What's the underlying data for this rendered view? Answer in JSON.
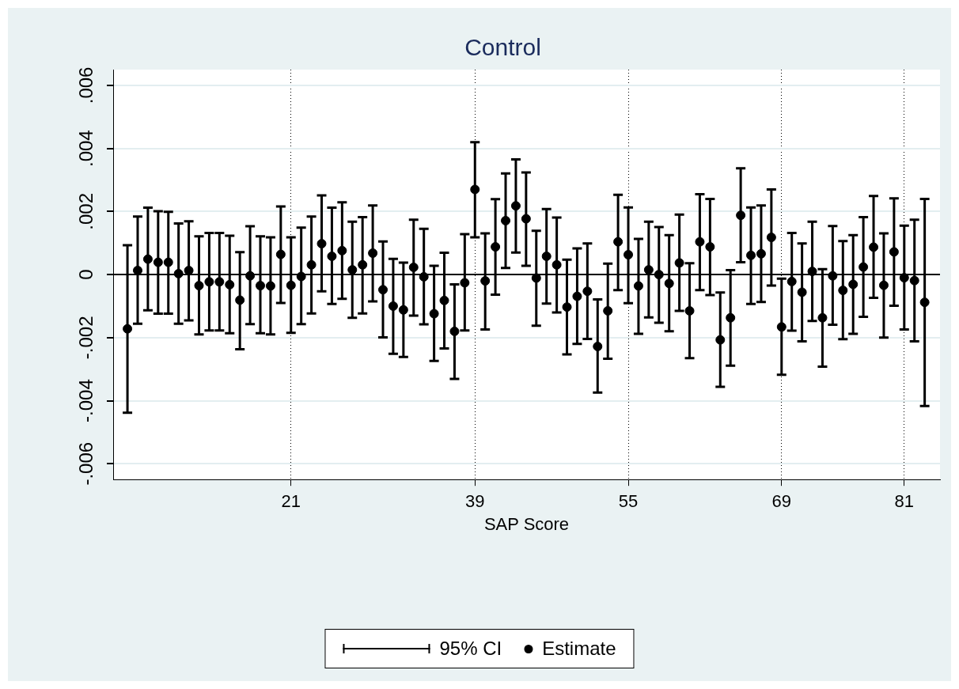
{
  "chart_data": {
    "type": "scatter",
    "title": "Control",
    "xlabel": "SAP Score",
    "categories": [
      null,
      null,
      null,
      null,
      null,
      null,
      null,
      null,
      null,
      null,
      null,
      null,
      null,
      null,
      null,
      null,
      "21",
      null,
      null,
      null,
      null,
      null,
      null,
      null,
      null,
      null,
      null,
      null,
      null,
      null,
      null,
      null,
      null,
      null,
      "39",
      null,
      null,
      null,
      null,
      null,
      null,
      null,
      null,
      null,
      null,
      null,
      null,
      null,
      null,
      "55",
      null,
      null,
      null,
      null,
      null,
      null,
      null,
      null,
      null,
      null,
      null,
      null,
      null,
      null,
      "69",
      null,
      null,
      null,
      null,
      null,
      null,
      null,
      null,
      null,
      null,
      null,
      "81",
      null,
      null
    ],
    "ylim": [
      -0.0065,
      0.0065
    ],
    "yticks": [
      {
        "value": -0.006,
        "label": "-.006"
      },
      {
        "value": -0.004,
        "label": "-.004"
      },
      {
        "value": -0.002,
        "label": "-.002"
      },
      0,
      {
        "value": 0.002,
        "label": ".002"
      },
      {
        "value": 0.004,
        "label": ".004"
      },
      {
        "value": 0.006,
        "label": ".006"
      }
    ],
    "grid": true,
    "legend": "bottom",
    "annotations": [
      "95% CI"
    ],
    "ref_lines": [
      {
        "axis": "y",
        "value": 0,
        "color": "#000000"
      }
    ],
    "series": [
      {
        "name": "Estimate",
        "type": "scatter",
        "marker": "circle",
        "color": "#000000",
        "values": [
          -0.00172,
          0.00013,
          0.00049,
          0.00039,
          0.00039,
          3e-05,
          0.00013,
          -0.00035,
          -0.00023,
          -0.00023,
          -0.00032,
          -0.00081,
          -4e-05,
          -0.00035,
          -0.00036,
          0.00064,
          -0.00034,
          -6e-05,
          0.00031,
          0.00098,
          0.00058,
          0.00076,
          0.00015,
          0.00031,
          0.00068,
          -0.00048,
          -0.001,
          -0.00112,
          0.00023,
          -7e-05,
          -0.00124,
          -0.00082,
          -0.0018,
          -0.00026,
          0.0027,
          -0.0002,
          0.00088,
          0.00171,
          0.00218,
          0.00177,
          -0.00011,
          0.00058,
          0.00031,
          -0.00103,
          -0.00069,
          -0.00053,
          -0.00228,
          -0.00115,
          0.00104,
          0.00063,
          -0.00036,
          0.00015,
          0,
          -0.00028,
          0.00037,
          -0.00115,
          0.00104,
          0.00088,
          -0.00207,
          -0.00137,
          0.00188,
          0.00061,
          0.00066,
          0.00118,
          -0.00166,
          -0.00022,
          -0.00056,
          0.0001,
          -0.00137,
          -4e-05,
          -0.0005,
          -0.00031,
          0.00024,
          0.00087,
          -0.00034,
          0.00072,
          -0.0001,
          -0.00019,
          -0.00088
        ],
        "errors": [
          [
            -0.00438,
            0.00093
          ],
          [
            -0.00156,
            0.00184
          ],
          [
            -0.00113,
            0.00212
          ],
          [
            -0.00124,
            0.00201
          ],
          [
            -0.00124,
            0.00199
          ],
          [
            -0.00156,
            0.00162
          ],
          [
            -0.00145,
            0.00169
          ],
          [
            -0.0019,
            0.00121
          ],
          [
            -0.00177,
            0.00132
          ],
          [
            -0.00177,
            0.00132
          ],
          [
            -0.00186,
            0.00123
          ],
          [
            -0.00237,
            0.00071
          ],
          [
            -0.00157,
            0.00153
          ],
          [
            -0.00186,
            0.00121
          ],
          [
            -0.0019,
            0.00118
          ],
          [
            -0.0009,
            0.00216
          ],
          [
            -0.00185,
            0.00118
          ],
          [
            -0.00157,
            0.00149
          ],
          [
            -0.00123,
            0.00184
          ],
          [
            -0.00053,
            0.00251
          ],
          [
            -0.00093,
            0.00212
          ],
          [
            -0.00077,
            0.00229
          ],
          [
            -0.00137,
            0.00168
          ],
          [
            -0.00123,
            0.00182
          ],
          [
            -0.00085,
            0.00219
          ],
          [
            -0.00199,
            0.00105
          ],
          [
            -0.00251,
            0.0005
          ],
          [
            -0.00261,
            0.00038
          ],
          [
            -0.0013,
            0.00174
          ],
          [
            -0.00158,
            0.00145
          ],
          [
            -0.00274,
            0.00028
          ],
          [
            -0.00234,
            0.00069
          ],
          [
            -0.00331,
            -0.00031
          ],
          [
            -0.00177,
            0.00128
          ],
          [
            0.00118,
            0.0042
          ],
          [
            -0.00174,
            0.00131
          ],
          [
            -0.00064,
            0.00239
          ],
          [
            0.00021,
            0.00321
          ],
          [
            0.0007,
            0.00365
          ],
          [
            0.00028,
            0.00324
          ],
          [
            -0.00162,
            0.00139
          ],
          [
            -0.00092,
            0.00208
          ],
          [
            -0.0012,
            0.00181
          ],
          [
            -0.00253,
            0.00047
          ],
          [
            -0.0022,
            0.00083
          ],
          [
            -0.00204,
            0.00099
          ],
          [
            -0.00374,
            -0.00079
          ],
          [
            -0.00267,
            0.00035
          ],
          [
            -0.00049,
            0.00253
          ],
          [
            -0.00091,
            0.00213
          ],
          [
            -0.00188,
            0.00113
          ],
          [
            -0.00136,
            0.00168
          ],
          [
            -0.00153,
            0.00151
          ],
          [
            -0.0018,
            0.00125
          ],
          [
            -0.00115,
            0.0019
          ],
          [
            -0.00265,
            0.00036
          ],
          [
            -0.00049,
            0.00255
          ],
          [
            -0.00065,
            0.0024
          ],
          [
            -0.00356,
            -0.00057
          ],
          [
            -0.00289,
            0.00014
          ],
          [
            0.00039,
            0.00337
          ],
          [
            -0.00093,
            0.00213
          ],
          [
            -0.00087,
            0.00219
          ],
          [
            -0.00035,
            0.0027
          ],
          [
            -0.00318,
            -0.00013
          ],
          [
            -0.00178,
            0.00132
          ],
          [
            -0.00212,
            0.00099
          ],
          [
            -0.00147,
            0.00168
          ],
          [
            -0.00292,
            0.00017
          ],
          [
            -0.00159,
            0.00154
          ],
          [
            -0.00205,
            0.00106
          ],
          [
            -0.00188,
            0.00125
          ],
          [
            -0.00134,
            0.00182
          ],
          [
            -0.00074,
            0.00249
          ],
          [
            -0.002,
            0.00131
          ],
          [
            -0.00099,
            0.00242
          ],
          [
            -0.00174,
            0.00155
          ],
          [
            -0.00212,
            0.00174
          ],
          [
            -0.00417,
            0.0024
          ]
        ]
      }
    ]
  }
}
